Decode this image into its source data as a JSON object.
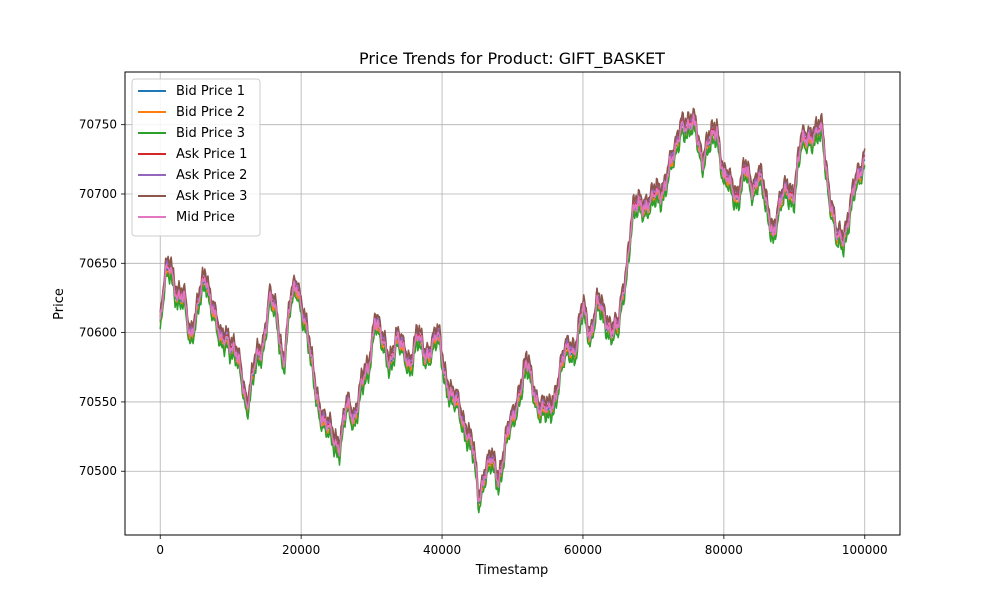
{
  "chart_data": {
    "type": "line",
    "title": "Price Trends for Product: GIFT_BASKET",
    "xlabel": "Timestamp",
    "ylabel": "Price",
    "xlim": [
      -5000,
      105000
    ],
    "ylim": [
      70454,
      70788
    ],
    "xticks": [
      0,
      20000,
      40000,
      60000,
      80000,
      100000
    ],
    "yticks": [
      70500,
      70550,
      70600,
      70650,
      70700,
      70750
    ],
    "grid": true,
    "legend_position": "top-left",
    "anchors": [
      [
        0,
        70605
      ],
      [
        800,
        70640
      ],
      [
        1500,
        70650
      ],
      [
        2500,
        70625
      ],
      [
        3500,
        70620
      ],
      [
        4200,
        70600
      ],
      [
        5200,
        70615
      ],
      [
        6500,
        70640
      ],
      [
        7500,
        70620
      ],
      [
        8500,
        70590
      ],
      [
        9500,
        70600
      ],
      [
        10500,
        70585
      ],
      [
        11500,
        70570
      ],
      [
        12300,
        70550
      ],
      [
        13500,
        70575
      ],
      [
        14500,
        70590
      ],
      [
        15500,
        70625
      ],
      [
        16500,
        70610
      ],
      [
        17500,
        70580
      ],
      [
        18500,
        70620
      ],
      [
        19500,
        70635
      ],
      [
        20500,
        70610
      ],
      [
        21500,
        70575
      ],
      [
        22500,
        70550
      ],
      [
        23500,
        70530
      ],
      [
        24500,
        70525
      ],
      [
        25500,
        70520
      ],
      [
        26500,
        70545
      ],
      [
        27500,
        70540
      ],
      [
        28500,
        70560
      ],
      [
        29500,
        70570
      ],
      [
        30500,
        70615
      ],
      [
        31500,
        70590
      ],
      [
        32500,
        70580
      ],
      [
        33500,
        70595
      ],
      [
        34500,
        70585
      ],
      [
        35500,
        70580
      ],
      [
        36500,
        70595
      ],
      [
        37500,
        70585
      ],
      [
        38500,
        70590
      ],
      [
        39500,
        70595
      ],
      [
        40500,
        70570
      ],
      [
        41500,
        70550
      ],
      [
        42500,
        70545
      ],
      [
        43500,
        70530
      ],
      [
        44500,
        70510
      ],
      [
        45200,
        70480
      ],
      [
        46000,
        70500
      ],
      [
        47000,
        70505
      ],
      [
        48000,
        70495
      ],
      [
        49000,
        70520
      ],
      [
        50000,
        70535
      ],
      [
        51000,
        70560
      ],
      [
        52000,
        70575
      ],
      [
        53000,
        70560
      ],
      [
        54000,
        70545
      ],
      [
        55000,
        70540
      ],
      [
        56000,
        70555
      ],
      [
        57000,
        70575
      ],
      [
        58000,
        70590
      ],
      [
        59000,
        70590
      ],
      [
        60000,
        70615
      ],
      [
        61000,
        70600
      ],
      [
        62000,
        70620
      ],
      [
        63000,
        70610
      ],
      [
        64000,
        70605
      ],
      [
        65000,
        70600
      ],
      [
        66000,
        70640
      ],
      [
        67000,
        70685
      ],
      [
        68000,
        70690
      ],
      [
        69000,
        70695
      ],
      [
        70000,
        70695
      ],
      [
        71000,
        70700
      ],
      [
        72000,
        70715
      ],
      [
        73000,
        70725
      ],
      [
        74000,
        70755
      ],
      [
        75000,
        70745
      ],
      [
        76000,
        70750
      ],
      [
        77000,
        70725
      ],
      [
        78000,
        70735
      ],
      [
        79000,
        70750
      ],
      [
        80000,
        70710
      ],
      [
        81000,
        70705
      ],
      [
        82000,
        70700
      ],
      [
        83000,
        70715
      ],
      [
        84000,
        70705
      ],
      [
        85000,
        70715
      ],
      [
        86000,
        70690
      ],
      [
        87000,
        70675
      ],
      [
        88000,
        70690
      ],
      [
        89000,
        70705
      ],
      [
        90000,
        70700
      ],
      [
        91000,
        70735
      ],
      [
        92000,
        70745
      ],
      [
        93000,
        70740
      ],
      [
        94000,
        70745
      ],
      [
        95000,
        70700
      ],
      [
        96000,
        70665
      ],
      [
        97000,
        70670
      ],
      [
        98000,
        70690
      ],
      [
        99000,
        70710
      ],
      [
        100000,
        70730
      ]
    ],
    "series": [
      {
        "name": "Bid Price 1",
        "color": "#1f77b4",
        "offset": -1.5
      },
      {
        "name": "Bid Price 2",
        "color": "#ff7f0e",
        "offset": -4
      },
      {
        "name": "Bid Price 3",
        "color": "#2ca02c",
        "offset": -6
      },
      {
        "name": "Ask Price 1",
        "color": "#d62728",
        "offset": 1.5
      },
      {
        "name": "Ask Price 2",
        "color": "#9467bd",
        "offset": 4
      },
      {
        "name": "Ask Price 3",
        "color": "#8c564b",
        "offset": 6
      },
      {
        "name": "Mid Price",
        "color": "#e377c2",
        "offset": 0
      }
    ]
  }
}
